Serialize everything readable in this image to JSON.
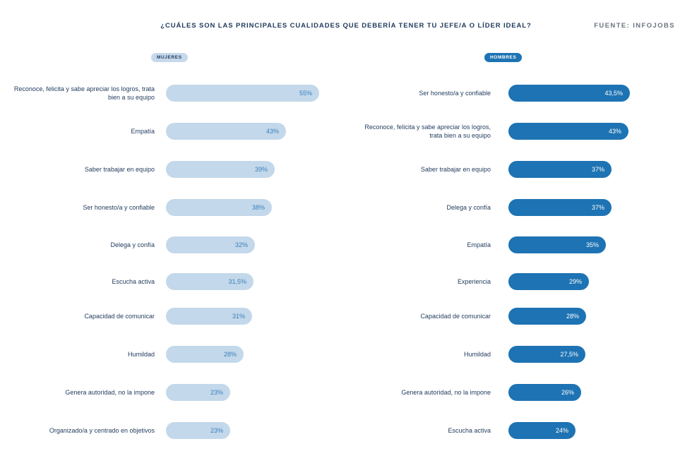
{
  "title": "¿CUÁLES SON LAS PRINCIPALES CUALIDADES QUE DEBERÍA TENER TU JEFE/A O LÍDER IDEAL?",
  "source": "FUENTE: INFOJOBS",
  "chart_data": [
    {
      "type": "bar",
      "orientation": "horizontal",
      "badge": "MUJERES",
      "color": "#c3d8ea",
      "categories": [
        "Reconoce, felicita y sabe apreciar los logros, trata bien a su equipo",
        "Empatía",
        "Saber trabajar en equipo",
        "Ser honesto/a y confiable",
        "Delega y confía",
        "Escucha activa",
        "Capacidad de comunicar",
        "Humildad",
        "Genera autoridad, no la impone",
        "Organizado/a y centrado en objetivos"
      ],
      "values": [
        55,
        43,
        39,
        38,
        32,
        31.5,
        31,
        28,
        23,
        23
      ],
      "value_labels": [
        "55%",
        "43%",
        "39%",
        "38%",
        "32%",
        "31,5%",
        "31%",
        "28%",
        "23%",
        "23%"
      ]
    },
    {
      "type": "bar",
      "orientation": "horizontal",
      "badge": "HOMBRES",
      "color": "#1d73b3",
      "categories": [
        "Ser honesto/a y confiable",
        "Reconoce, felicita y sabe apreciar los logros, trata bien a su equipo",
        "Saber trabajar en equipo",
        "Delega y confía",
        "Empatía",
        "Experiencia",
        "Capacidad de comunicar",
        "Humildad",
        "Genera autoridad, no la impone",
        "Escucha activa"
      ],
      "values": [
        43.5,
        43,
        37,
        37,
        35,
        29,
        28,
        27.5,
        26,
        24
      ],
      "value_labels": [
        "43,5%",
        "43%",
        "37%",
        "37%",
        "35%",
        "29%",
        "28%",
        "27,5%",
        "26%",
        "24%"
      ]
    }
  ]
}
